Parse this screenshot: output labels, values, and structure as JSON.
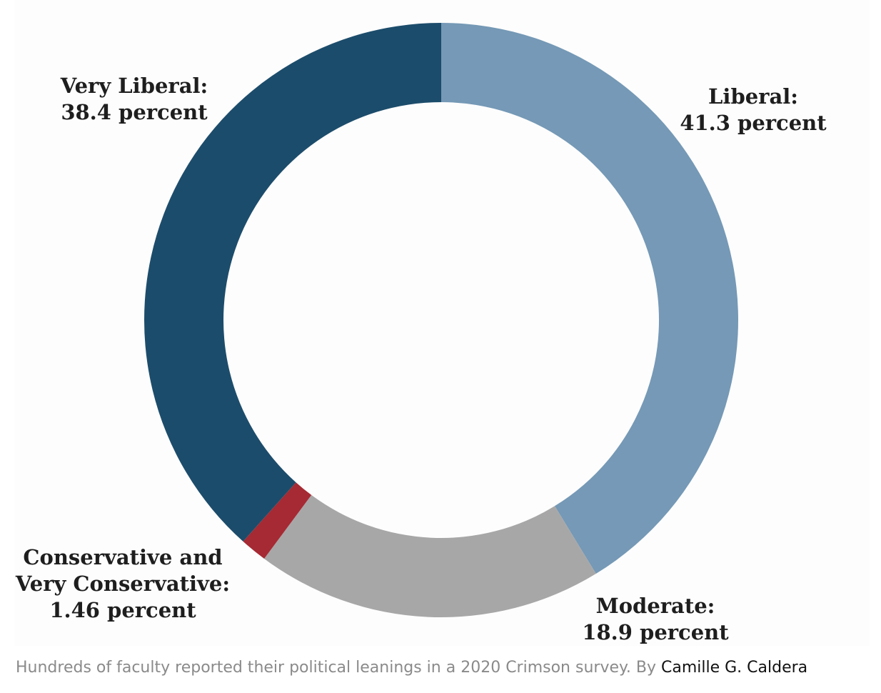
{
  "chart_data": {
    "type": "pie",
    "style": "donut",
    "title": "",
    "series": [
      {
        "categories": [
          "Liberal",
          "Moderate",
          "Conservative and Very Conservative",
          "Very Liberal"
        ],
        "values": [
          41.3,
          18.9,
          1.46,
          38.4
        ],
        "colors": [
          "#7599b6",
          "#a8a7a8",
          "#a52a33",
          "#1c4c6b"
        ]
      }
    ],
    "labels": [
      {
        "lines": [
          "Liberal:",
          "41.3 percent"
        ]
      },
      {
        "lines": [
          "Moderate:",
          "18.9 percent"
        ]
      },
      {
        "lines": [
          "Conservative and",
          "Very Conservative:",
          "1.46 percent"
        ]
      },
      {
        "lines": [
          "Very Liberal:",
          "38.4 percent"
        ]
      }
    ],
    "legend": "none",
    "grid": false
  },
  "caption": {
    "text": "Hundreds of faculty reported their political leanings in a 2020 Crimson survey. By ",
    "credit": "Camille G. Caldera"
  }
}
